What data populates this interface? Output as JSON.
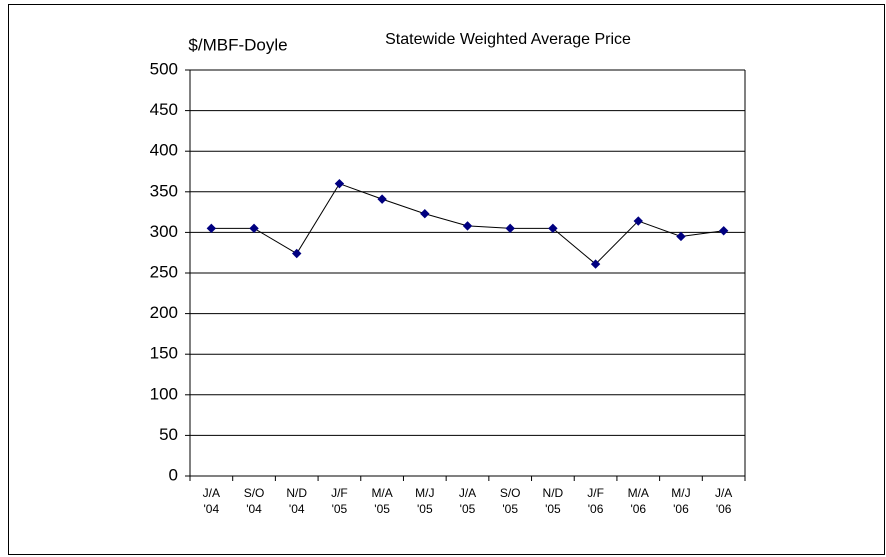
{
  "chart_data": {
    "type": "line",
    "title": "Statewide Weighted Average Price",
    "y_label": "$/MBF-Doyle",
    "categories": [
      [
        "J/A",
        "'04"
      ],
      [
        "S/O",
        "'04"
      ],
      [
        "N/D",
        "'04"
      ],
      [
        "J/F",
        "'05"
      ],
      [
        "M/A",
        "'05"
      ],
      [
        "M/J",
        "'05"
      ],
      [
        "J/A",
        "'05"
      ],
      [
        "S/O",
        "'05"
      ],
      [
        "N/D",
        "'05"
      ],
      [
        "J/F",
        "'06"
      ],
      [
        "M/A",
        "'06"
      ],
      [
        "M/J",
        "'06"
      ],
      [
        "J/A",
        "'06"
      ]
    ],
    "series": [
      {
        "name": "Statewide Weighted Average Price",
        "color": "#000080",
        "values": [
          305,
          305,
          274,
          360,
          341,
          323,
          308,
          305,
          305,
          261,
          314,
          295,
          302
        ]
      }
    ],
    "ylim": [
      0,
      500
    ],
    "yticks": [
      0,
      50,
      100,
      150,
      200,
      250,
      300,
      350,
      400,
      450,
      500
    ],
    "grid": true
  }
}
